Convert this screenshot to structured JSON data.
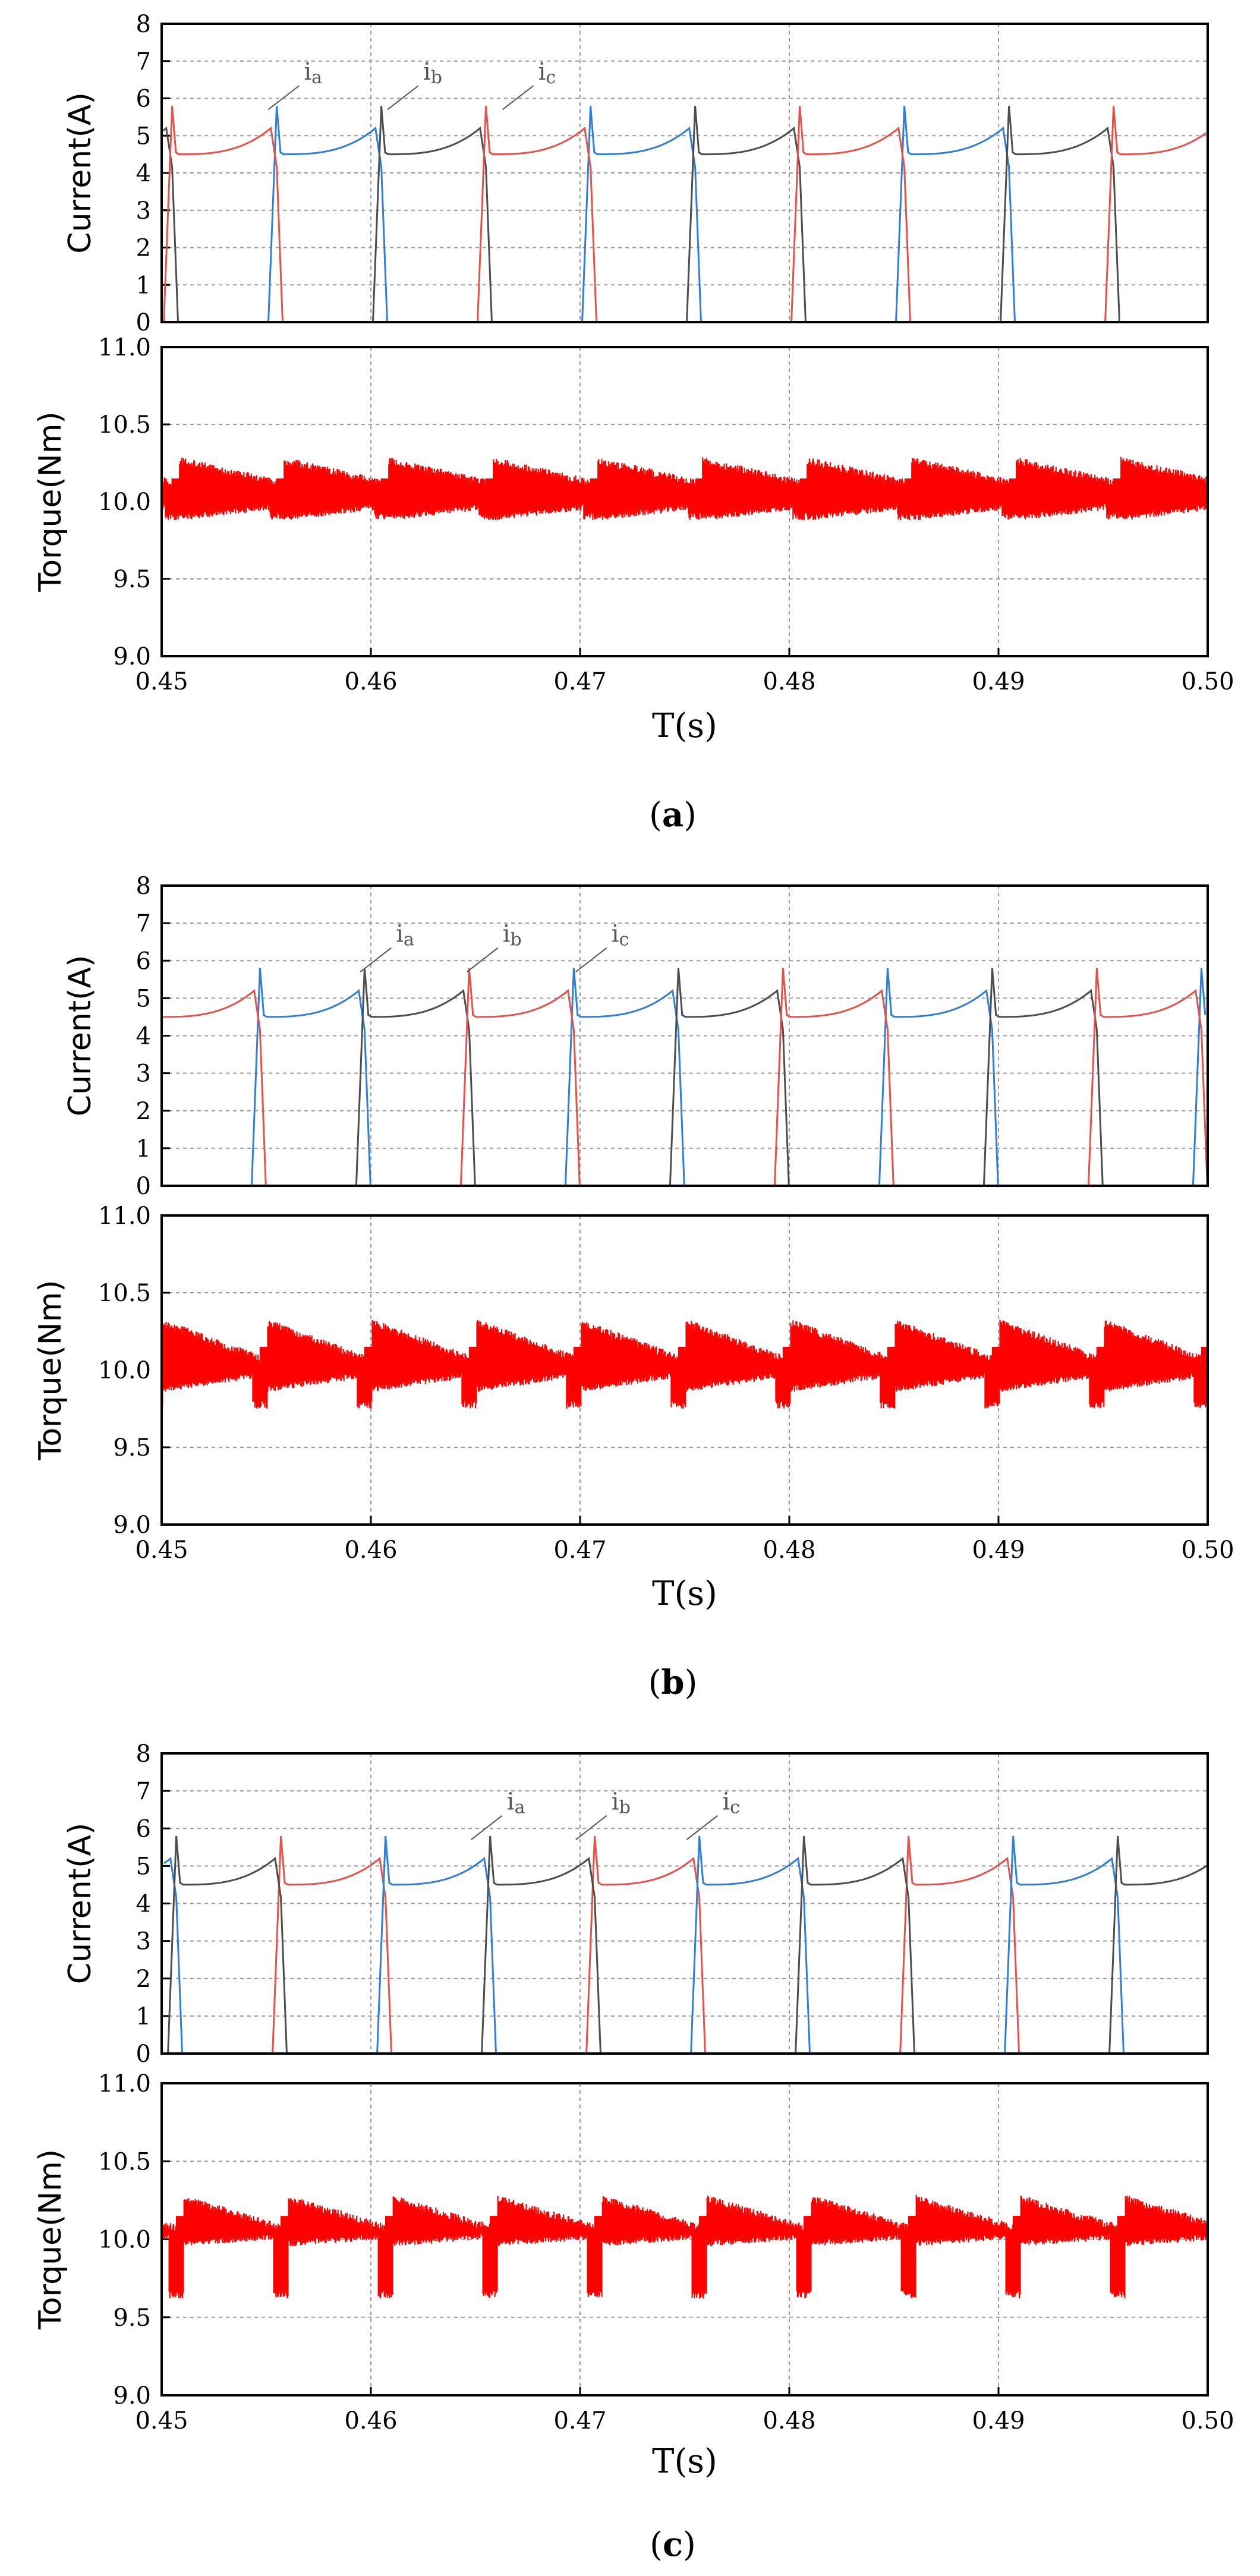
{
  "chart_data": [
    {
      "type": "line",
      "panel_label": "a",
      "x_range": [
        0.45,
        0.5
      ],
      "x_ticks": [
        "0.45",
        "0.46",
        "0.47",
        "0.48",
        "0.49",
        "0.50"
      ],
      "xlabel": "T(s)",
      "grid": true,
      "current": {
        "ylabel": "Current(A)",
        "ylim": [
          0,
          8
        ],
        "y_ticks": [
          "0",
          "1",
          "2",
          "3",
          "4",
          "5",
          "6",
          "7",
          "8"
        ],
        "period_s": 0.005,
        "phase_start_s": 0.4555,
        "base_A": 4.5,
        "hump_A": 5.2,
        "spike_A": 5.8,
        "sequence": [
          "i_c",
          "i_a",
          "i_b"
        ],
        "series": [
          {
            "name": "i",
            "sub": "a",
            "color": "#4d4d4d",
            "label_x": 0.4568,
            "label_y": 6.5
          },
          {
            "name": "i",
            "sub": "b",
            "color": "#e8504a",
            "label_x": 0.4625,
            "label_y": 6.5
          },
          {
            "name": "i",
            "sub": "c",
            "color": "#2f7ed8",
            "label_x": 0.468,
            "label_y": 6.5
          }
        ]
      },
      "torque": {
        "ylabel": "Torque(Nm)",
        "ylim": [
          9.0,
          11.0
        ],
        "y_ticks": [
          "9.0",
          "9.5",
          "10.0",
          "10.5",
          "11.0"
        ],
        "color": "#ff0000",
        "upper_Nm": [
          10.15,
          10.3
        ],
        "lower_Nm": [
          9.87,
          9.95
        ],
        "dip_Nm": 9.88
      }
    },
    {
      "type": "line",
      "panel_label": "b",
      "x_range": [
        0.45,
        0.5
      ],
      "x_ticks": [
        "0.45",
        "0.46",
        "0.47",
        "0.48",
        "0.49",
        "0.50"
      ],
      "xlabel": "T(s)",
      "grid": true,
      "current": {
        "ylabel": "Current(A)",
        "ylim": [
          0,
          8
        ],
        "y_ticks": [
          "0",
          "1",
          "2",
          "3",
          "4",
          "5",
          "6",
          "7",
          "8"
        ],
        "period_s": 0.005,
        "phase_start_s": 0.4547,
        "base_A": 4.5,
        "hump_A": 5.2,
        "spike_A": 5.8,
        "sequence": [
          "i_c",
          "i_a",
          "i_b"
        ],
        "series": [
          {
            "name": "i",
            "sub": "a",
            "color": "#4d4d4d",
            "label_x": 0.4612,
            "label_y": 6.5
          },
          {
            "name": "i",
            "sub": "b",
            "color": "#e8504a",
            "label_x": 0.4663,
            "label_y": 6.5
          },
          {
            "name": "i",
            "sub": "c",
            "color": "#2f7ed8",
            "label_x": 0.4715,
            "label_y": 6.5
          }
        ]
      },
      "torque": {
        "ylabel": "Torque(Nm)",
        "ylim": [
          9.0,
          11.0
        ],
        "y_ticks": [
          "9.0",
          "9.5",
          "10.0",
          "10.5",
          "11.0"
        ],
        "color": "#ff0000",
        "upper_Nm": [
          10.1,
          10.35
        ],
        "lower_Nm": [
          9.85,
          9.95
        ],
        "dip_Nm": 9.75
      }
    },
    {
      "type": "line",
      "panel_label": "c",
      "x_range": [
        0.45,
        0.5
      ],
      "x_ticks": [
        "0.45",
        "0.46",
        "0.47",
        "0.48",
        "0.49",
        "0.50"
      ],
      "xlabel": "T(s)",
      "grid": true,
      "current": {
        "ylabel": "Current(A)",
        "ylim": [
          0,
          8
        ],
        "y_ticks": [
          "0",
          "1",
          "2",
          "3",
          "4",
          "5",
          "6",
          "7",
          "8"
        ],
        "period_s": 0.005,
        "phase_start_s": 0.4557,
        "base_A": 4.5,
        "hump_A": 5.2,
        "spike_A": 5.8,
        "sequence": [
          "i_b",
          "i_c",
          "i_a"
        ],
        "series": [
          {
            "name": "i",
            "sub": "a",
            "color": "#4d4d4d",
            "label_x": 0.4665,
            "label_y": 6.5
          },
          {
            "name": "i",
            "sub": "b",
            "color": "#e8504a",
            "label_x": 0.4715,
            "label_y": 6.5
          },
          {
            "name": "i",
            "sub": "c",
            "color": "#2f7ed8",
            "label_x": 0.4768,
            "label_y": 6.5
          }
        ]
      },
      "torque": {
        "ylabel": "Torque(Nm)",
        "ylim": [
          9.0,
          11.0
        ],
        "y_ticks": [
          "9.0",
          "9.5",
          "10.0",
          "10.5",
          "11.0"
        ],
        "color": "#ff0000",
        "upper_Nm": [
          10.1,
          10.3
        ],
        "lower_Nm": [
          9.95,
          10.0
        ],
        "dip_Nm": 9.62
      }
    }
  ]
}
